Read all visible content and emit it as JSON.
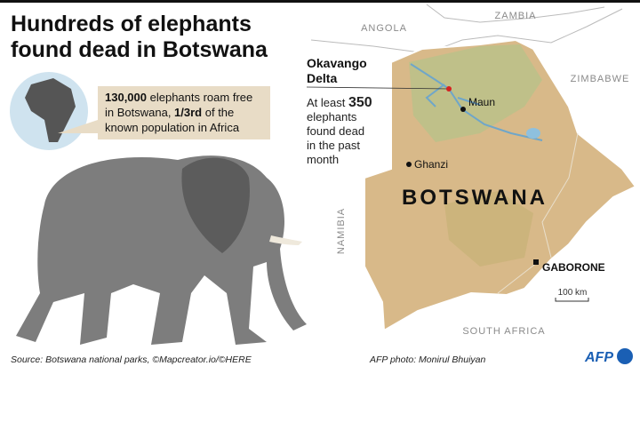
{
  "header": {
    "title_line1": "Hundreds of elephants",
    "title_line2": "found dead in Botswana"
  },
  "callout": {
    "bold1": "130,000",
    "text1": " elephants roam free",
    "text2": "in Botswana, ",
    "bold2": "1/3rd",
    "text3": " of the",
    "text4": "known population in Africa"
  },
  "annotation": {
    "place_line1": "Okavango",
    "place_line2": "Delta",
    "text1": "At least ",
    "bold": "350",
    "text2": "elephants",
    "text3": "found dead",
    "text4": "in the past",
    "text5": "month"
  },
  "map": {
    "countries": {
      "angola": "ANGOLA",
      "zambia": "ZAMBIA",
      "zimbabwe": "ZIMBABWE",
      "namibia": "NAMIBIA",
      "south_africa": "SOUTH AFRICA",
      "botswana": "BOTSWANA"
    },
    "towns": {
      "maun": "Maun",
      "ghanzi": "Ghanzi",
      "gaborone": "GABORONE"
    },
    "scale": "100 km"
  },
  "footer": {
    "source": "Source: Botswana national parks, ©Mapcreator.io/©HERE",
    "photo_credit": "AFP photo: Monirul Bhuiyan",
    "logo": "AFP"
  }
}
